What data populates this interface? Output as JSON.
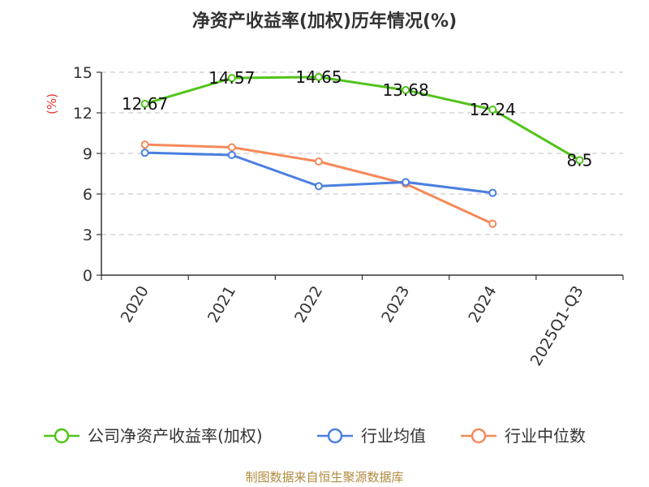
{
  "chart_data": {
    "type": "line",
    "title": "净资产收益率(加权)历年情况(%)",
    "ylabel": "(%)",
    "xlabel": "",
    "categories": [
      "2020",
      "2021",
      "2022",
      "2023",
      "2024",
      "2025Q1-Q3"
    ],
    "ylim": [
      0,
      15
    ],
    "yticks": [
      0,
      3,
      6,
      9,
      12,
      15
    ],
    "grid": true,
    "legend_position": "bottom",
    "series": [
      {
        "name": "公司净资产收益率(加权)",
        "color": "#52c41a",
        "values": [
          12.67,
          14.57,
          14.65,
          13.68,
          12.24,
          8.5
        ],
        "labels": [
          "12.67",
          "14.57",
          "14.65",
          "13.68",
          "12.24",
          "8.5"
        ]
      },
      {
        "name": "行业均值",
        "color": "#4a7fe0",
        "values": [
          9.05,
          8.88,
          6.58,
          6.88,
          6.08,
          null
        ]
      },
      {
        "name": "行业中位数",
        "color": "#f5895a",
        "values": [
          9.65,
          9.45,
          8.4,
          6.75,
          3.8,
          null
        ]
      }
    ]
  },
  "source": "制图数据来自恒生聚源数据库"
}
